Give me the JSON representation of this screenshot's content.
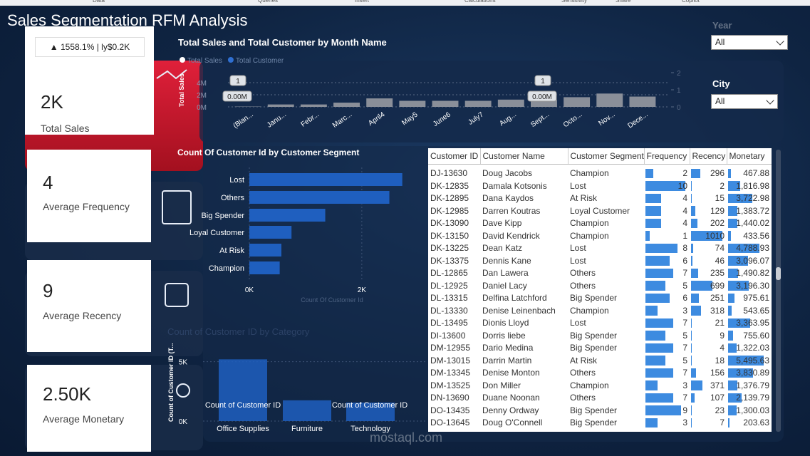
{
  "ribbon": [
    "Data",
    "Queries",
    "Insert",
    "Calculations",
    "Sensitivity",
    "Share",
    "Copilot"
  ],
  "header": {
    "title": "Sales Segmentation RFM Analysis"
  },
  "kpis": [
    {
      "delta": "▲ 1558.1% | ly$0.2K",
      "value": "2K",
      "label": "Total Sales"
    },
    {
      "value": "4",
      "label": "Average Frequency"
    },
    {
      "value": "9",
      "label": "Average Recency"
    },
    {
      "value": "2.50K",
      "label": "Average Monetary"
    }
  ],
  "filters": [
    {
      "label": "Year",
      "value": "All"
    },
    {
      "label": "City",
      "value": "All"
    }
  ],
  "chart_data": [
    {
      "type": "bar",
      "title": "Total Sales and Total Customer by Month Name",
      "categories": [
        "(Blan...",
        "Janu...",
        "Febr...",
        "Marc...",
        "April4",
        "May5",
        "June6",
        "July7",
        "Aug...",
        "Sept...",
        "Octo...",
        "Nov...",
        "Dece..."
      ],
      "series": [
        {
          "name": "Total Sales",
          "color": "#8a8f99",
          "values": [
            0.005,
            0.04,
            0.04,
            0.07,
            0.14,
            0.1,
            0.1,
            0.1,
            0.12,
            0.12,
            0.16,
            0.22,
            0.17
          ]
        },
        {
          "name": "Total Customer",
          "color": "#2f6fd1",
          "axis": "y2",
          "values": [
            1,
            1,
            1,
            1,
            1,
            1,
            1,
            1,
            1,
            1,
            1,
            1,
            1
          ]
        }
      ],
      "ylabel": "Total Sales",
      "ylim": [
        0,
        0.4
      ],
      "yticks": [
        {
          "value": 0,
          "label": "0M"
        },
        {
          "value": 0.2,
          "label": "2M"
        },
        {
          "value": 0.4,
          "label": "4M"
        }
      ],
      "y2lim": [
        0,
        2
      ],
      "y2ticks": [
        0,
        1,
        2
      ],
      "annotations": [
        "1",
        "0.00M",
        "1",
        "0.00M"
      ]
    },
    {
      "type": "hbar",
      "title": "Count Of Customer Id by Customer Segment",
      "categories": [
        "Lost",
        "Others",
        "Big Spender",
        "Loyal Customer",
        "At Risk",
        "Champion"
      ],
      "values": [
        2720,
        2490,
        1350,
        750,
        570,
        540
      ],
      "color": "#1f5fbf",
      "xlabel": "Count Of Customer Id",
      "xlim": [
        0,
        2800
      ],
      "xticks": [
        {
          "value": 0,
          "label": "0K"
        },
        {
          "value": 2000,
          "label": "2K"
        }
      ]
    },
    {
      "type": "bar",
      "title": "Count of Customer ID by Category",
      "categories": [
        "Office Supplies",
        "Furniture",
        "Technology"
      ],
      "values": [
        5200,
        1750,
        1560
      ],
      "color": "#1f5fbf",
      "ylabel": "Count of Customer ID (T...",
      "ylim": [
        0,
        6000
      ],
      "yticks": [
        {
          "value": 0,
          "label": "0K"
        },
        {
          "value": 5000,
          "label": "5K"
        }
      ],
      "annotations": [
        "Count of Customer ID",
        "Count of Customer ID"
      ]
    }
  ],
  "table": {
    "columns": [
      "Customer ID",
      "Customer Name",
      "Customer Segment",
      "Frequency",
      "Recency",
      "Monetary"
    ],
    "rows": [
      [
        "DJ-13630",
        "Doug Jacobs",
        "Champion",
        2,
        296,
        "467.88"
      ],
      [
        "DK-12835",
        "Damala Kotsonis",
        "Lost",
        10,
        2,
        "1,816.98"
      ],
      [
        "DK-12895",
        "Dana Kaydos",
        "At Risk",
        4,
        15,
        "3,722.98"
      ],
      [
        "DK-12985",
        "Darren Koutras",
        "Loyal Customer",
        4,
        129,
        "1,383.72"
      ],
      [
        "DK-13090",
        "Dave Kipp",
        "Champion",
        4,
        202,
        "1,440.02"
      ],
      [
        "DK-13150",
        "David Kendrick",
        "Champion",
        1,
        1010,
        "433.56"
      ],
      [
        "DK-13225",
        "Dean Katz",
        "Lost",
        8,
        74,
        "4,788.93"
      ],
      [
        "DK-13375",
        "Dennis Kane",
        "Lost",
        6,
        46,
        "3,096.07"
      ],
      [
        "DL-12865",
        "Dan Lawera",
        "Others",
        7,
        235,
        "1,490.82"
      ],
      [
        "DL-12925",
        "Daniel Lacy",
        "Others",
        5,
        699,
        "3,196.30"
      ],
      [
        "DL-13315",
        "Delfina Latchford",
        "Big Spender",
        6,
        251,
        "975.61"
      ],
      [
        "DL-13330",
        "Denise Leinenbach",
        "Champion",
        3,
        318,
        "543.65"
      ],
      [
        "DL-13495",
        "Dionis Lloyd",
        "Lost",
        7,
        21,
        "3,363.95"
      ],
      [
        "DI-13600",
        "Dorris liebe",
        "Big Spender",
        5,
        9,
        "755.60"
      ],
      [
        "DM-12955",
        "Dario Medina",
        "Big Spender",
        7,
        4,
        "1,322.03"
      ],
      [
        "DM-13015",
        "Darrin Martin",
        "At Risk",
        5,
        18,
        "5,495.63"
      ],
      [
        "DM-13345",
        "Denise Monton",
        "Others",
        7,
        156,
        "3,830.89"
      ],
      [
        "DM-13525",
        "Don Miller",
        "Champion",
        3,
        371,
        "1,376.79"
      ],
      [
        "DN-13690",
        "Duane Noonan",
        "Others",
        7,
        107,
        "2,139.79"
      ],
      [
        "DO-13435",
        "Denny Ordway",
        "Big Spender",
        9,
        23,
        "1,300.03"
      ],
      [
        "DO-13645",
        "Doug O'Connell",
        "Big Spender",
        3,
        7,
        "203.63"
      ]
    ]
  },
  "watermark": "mostaql.com"
}
